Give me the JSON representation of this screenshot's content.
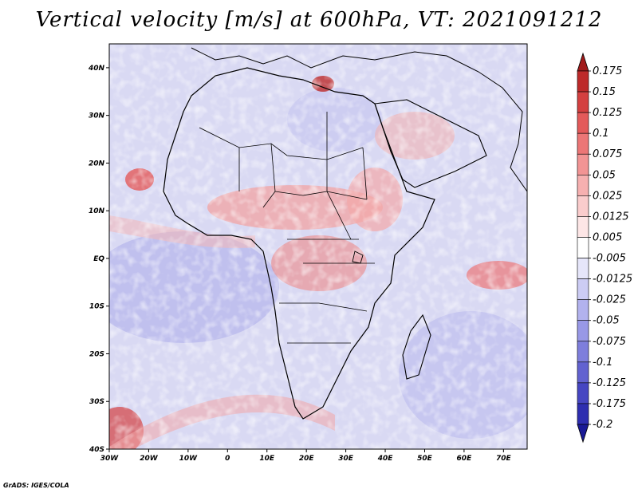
{
  "title": "Vertical velocity [m/s] at 600hPa, VT: 2021091212",
  "credit": "GrADS: IGES/COLA",
  "map": {
    "variable": "Vertical velocity",
    "units": "m/s",
    "level": "600hPa",
    "valid_time": "2021091212",
    "lon_range": [
      -30,
      76
    ],
    "lat_range": [
      -40,
      45
    ],
    "x_ticks": [
      {
        "lon": -30,
        "label": "30W"
      },
      {
        "lon": -20,
        "label": "20W"
      },
      {
        "lon": -10,
        "label": "10W"
      },
      {
        "lon": 0,
        "label": "0"
      },
      {
        "lon": 10,
        "label": "10E"
      },
      {
        "lon": 20,
        "label": "20E"
      },
      {
        "lon": 30,
        "label": "30E"
      },
      {
        "lon": 40,
        "label": "40E"
      },
      {
        "lon": 50,
        "label": "50E"
      },
      {
        "lon": 60,
        "label": "60E"
      },
      {
        "lon": 70,
        "label": "70E"
      }
    ],
    "y_ticks": [
      {
        "lat": 40,
        "label": "40N"
      },
      {
        "lat": 30,
        "label": "30N"
      },
      {
        "lat": 20,
        "label": "20N"
      },
      {
        "lat": 10,
        "label": "10N"
      },
      {
        "lat": 0,
        "label": "EQ"
      },
      {
        "lat": -10,
        "label": "10S"
      },
      {
        "lat": -20,
        "label": "20S"
      },
      {
        "lat": -30,
        "label": "30S"
      },
      {
        "lat": -40,
        "label": "40S"
      }
    ]
  },
  "colorbar": {
    "labels": [
      "0.175",
      "0.15",
      "0.125",
      "0.1",
      "0.075",
      "0.05",
      "0.025",
      "0.0125",
      "0.005",
      "-0.005",
      "-0.0125",
      "-0.025",
      "-0.05",
      "-0.075",
      "-0.1",
      "-0.125",
      "-0.175",
      "-0.2"
    ],
    "colors": [
      "#a11a1a",
      "#bd2a2a",
      "#d44040",
      "#e35a5a",
      "#ec7676",
      "#f29494",
      "#f6b0b0",
      "#facccc",
      "#fde6e6",
      "#ffffff",
      "#e6e6fa",
      "#ccccf4",
      "#b2b2ee",
      "#9898e6",
      "#7e7edc",
      "#6262d0",
      "#4646c2",
      "#2e2eb0",
      "#1a1a96"
    ]
  }
}
